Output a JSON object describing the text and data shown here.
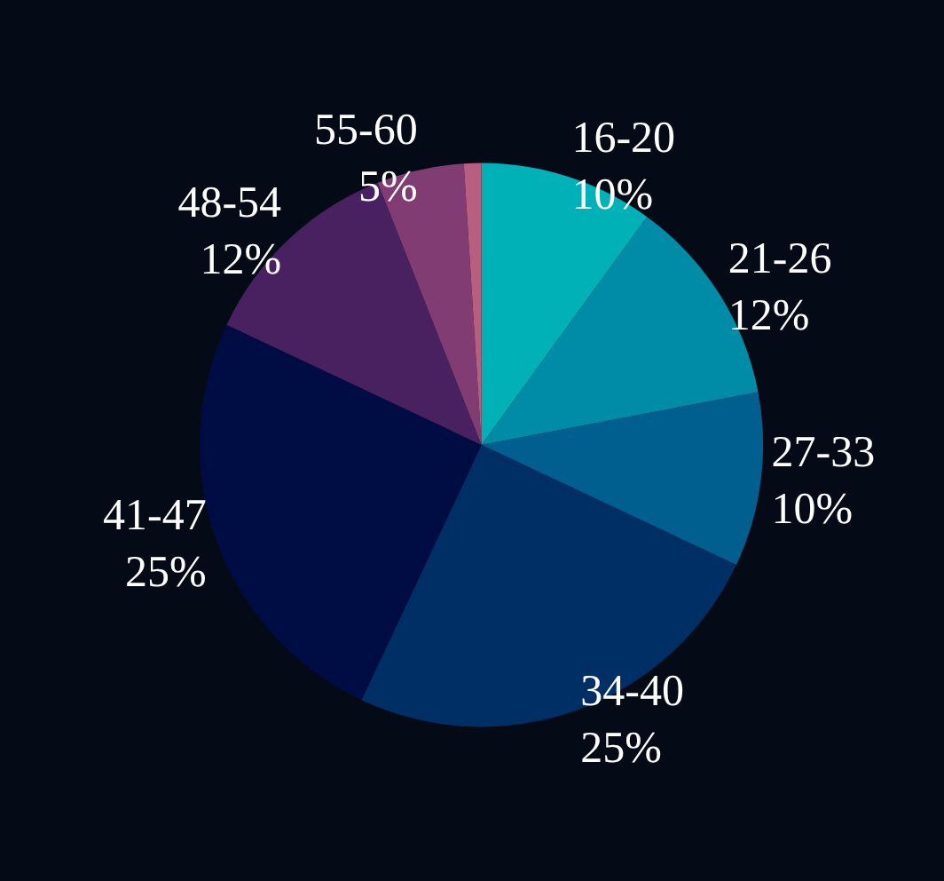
{
  "chart_data": {
    "type": "pie",
    "categories": [
      "16-20",
      "21-26",
      "27-33",
      "34-40",
      "41-47",
      "48-54",
      "55-60",
      null
    ],
    "values": [
      10,
      12,
      10,
      25,
      25,
      12,
      5,
      1
    ],
    "value_labels": [
      "10%",
      "12%",
      "10%",
      "25%",
      "25%",
      "12%",
      "5%",
      null
    ],
    "colors": [
      "#00b2b8",
      "#008ca6",
      "#005f8e",
      "#002f66",
      "#000d44",
      "#4a2160",
      "#813c74",
      "#b85f80"
    ],
    "legend": false
  }
}
